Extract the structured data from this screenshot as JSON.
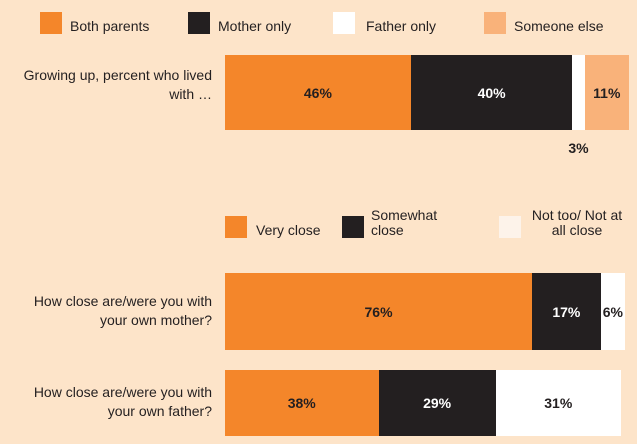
{
  "chart_data": [
    {
      "type": "stacked-bar-horizontal",
      "categories": [
        "Growing up, percent who lived with …"
      ],
      "xlim": [
        0,
        100
      ],
      "series": [
        {
          "name": "Both parents",
          "color": "#f4862a",
          "values": [
            46
          ],
          "value_labels": [
            "46%"
          ]
        },
        {
          "name": "Mother only",
          "color": "#231f20",
          "values": [
            40
          ],
          "value_labels": [
            "40%"
          ]
        },
        {
          "name": "Father only",
          "color": "#ffffff",
          "values": [
            3
          ],
          "value_labels": [
            "3%"
          ]
        },
        {
          "name": "Someone else",
          "color": "#f9b27a",
          "values": [
            11
          ],
          "value_labels": [
            "11%"
          ]
        }
      ]
    },
    {
      "type": "stacked-bar-horizontal",
      "categories": [
        "How close are/were you with your own mother?",
        "How close are/were you with your own father?"
      ],
      "xlim": [
        0,
        100
      ],
      "series": [
        {
          "name": "Very close",
          "color": "#f4862a",
          "values": [
            76,
            38
          ],
          "value_labels": [
            "76%",
            "38%"
          ]
        },
        {
          "name": "Somewhat close",
          "color": "#231f20",
          "values": [
            17,
            29
          ],
          "value_labels": [
            "17%",
            "29%"
          ]
        },
        {
          "name": "Not too/ Not at all close",
          "color": "#ffffff",
          "values": [
            6,
            31
          ],
          "value_labels": [
            "6%",
            "31%"
          ]
        }
      ]
    }
  ]
}
